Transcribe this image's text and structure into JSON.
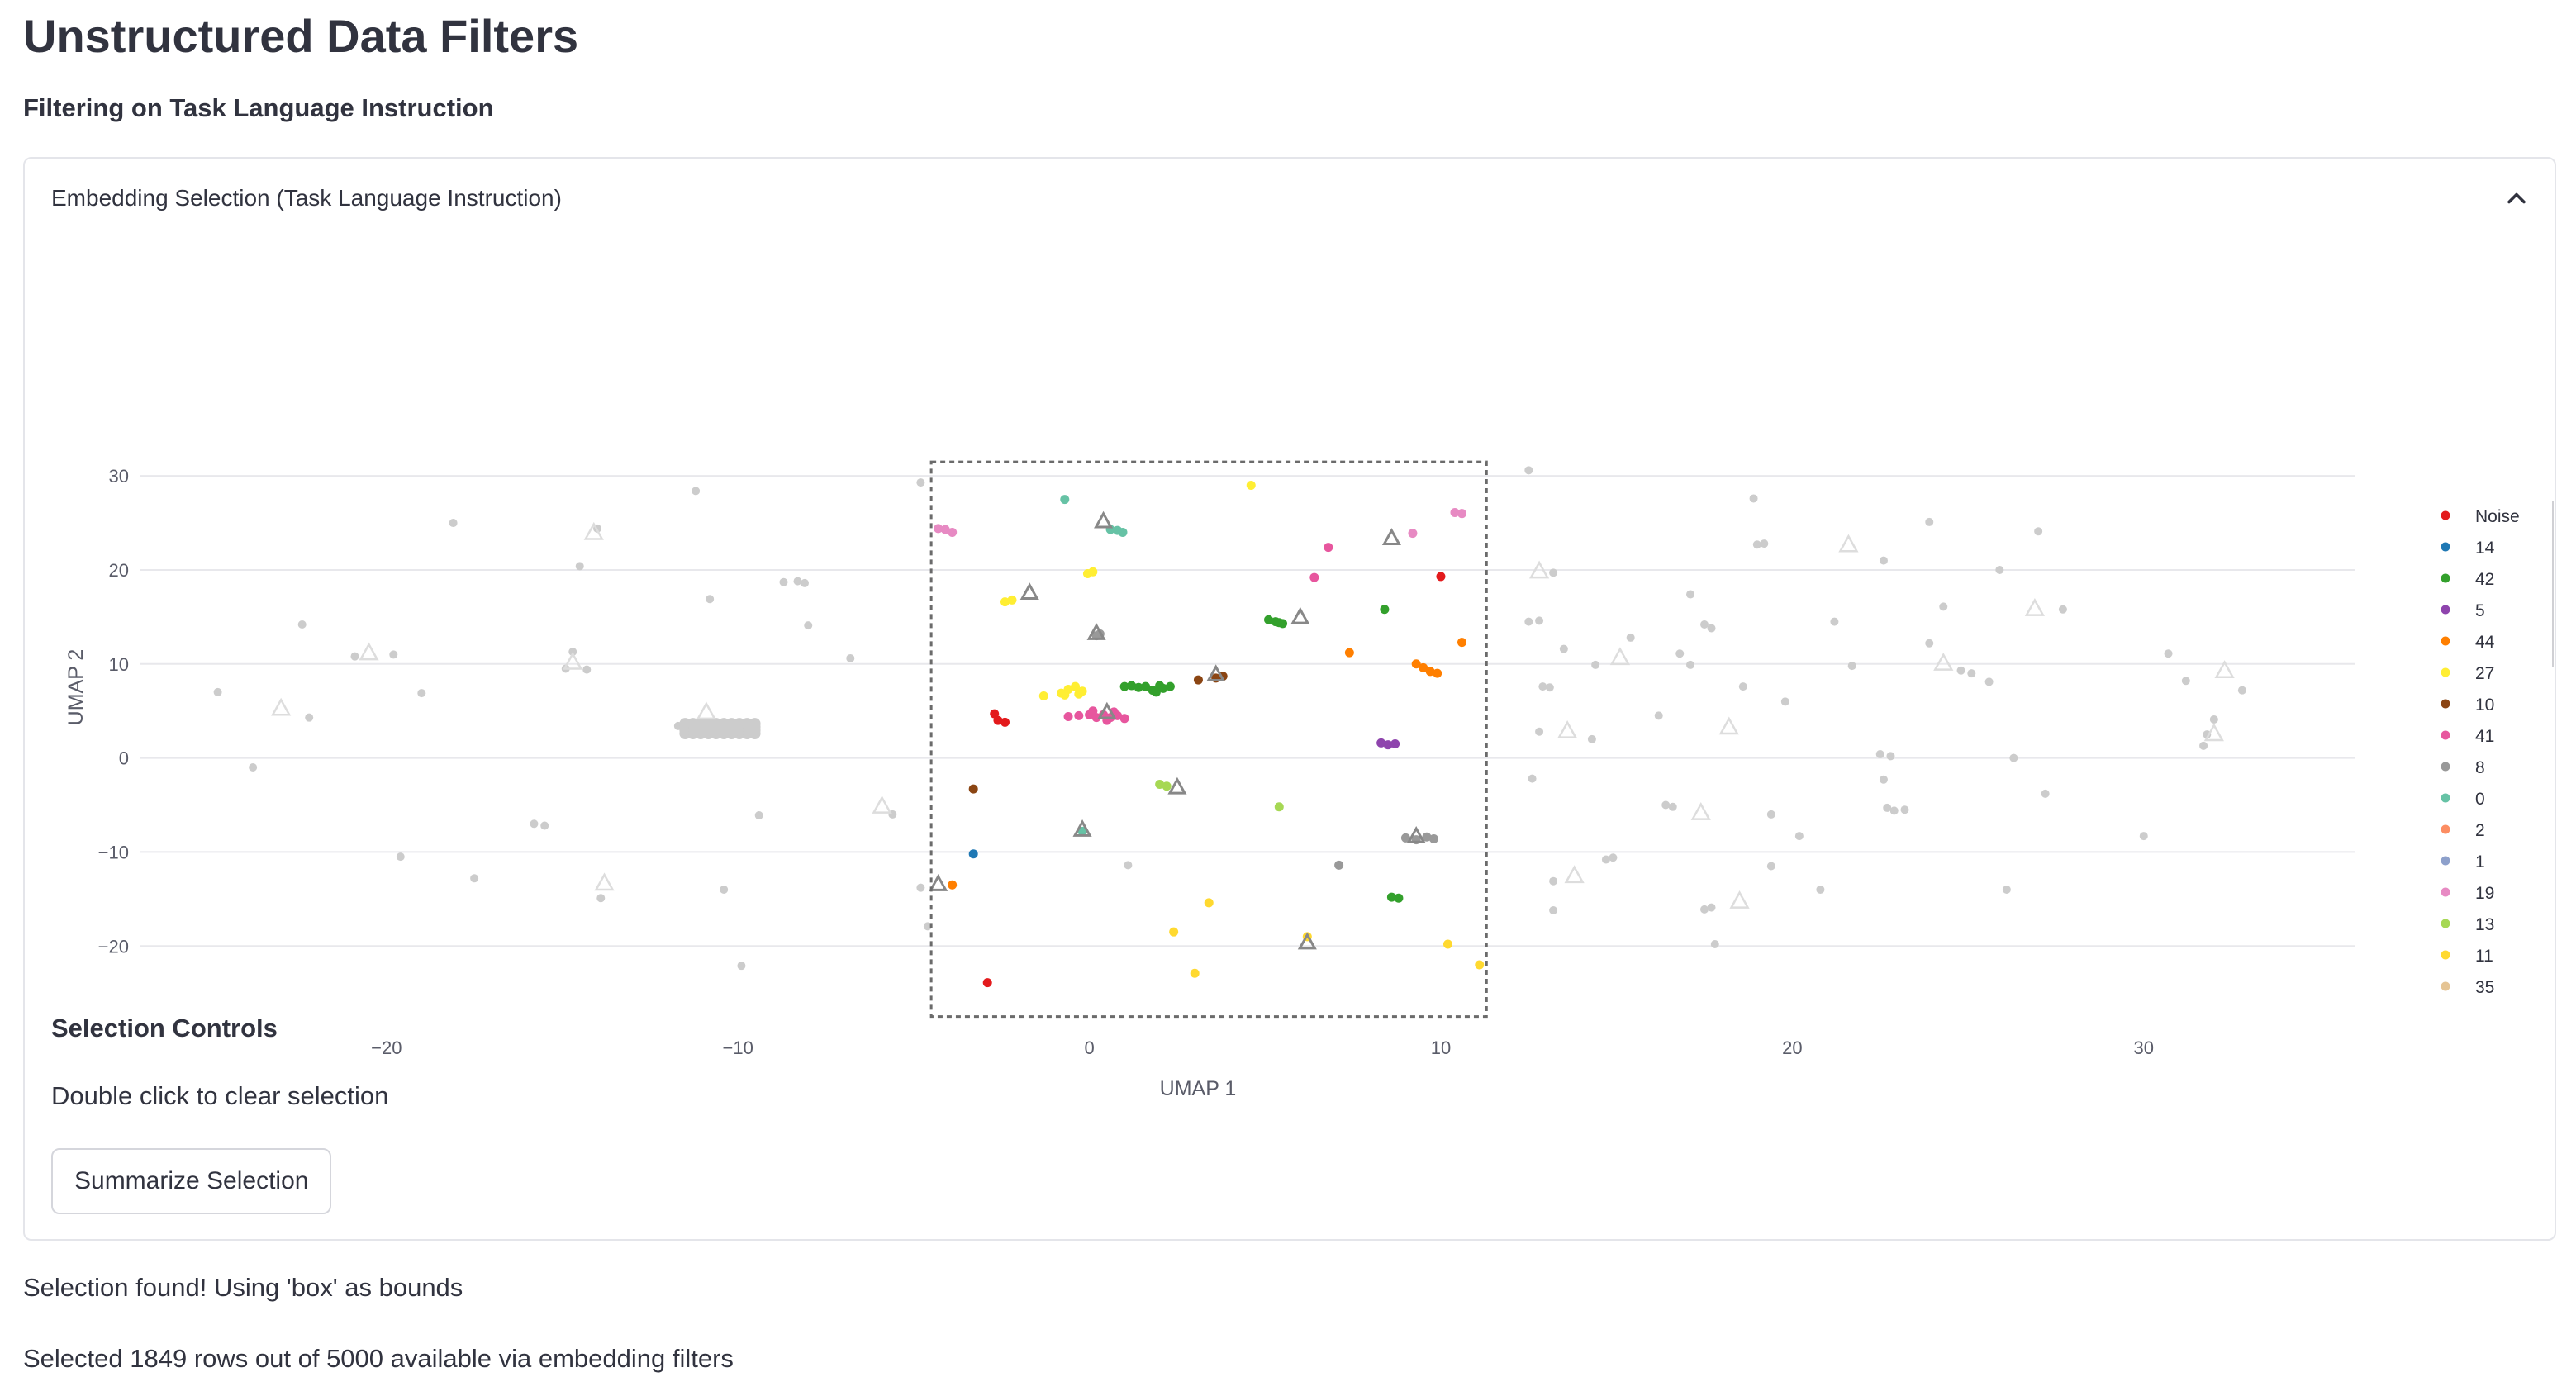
{
  "page": {
    "title": "Unstructured Data Filters",
    "subtitle": "Filtering on Task Language Instruction"
  },
  "expander": {
    "title": "Embedding Selection (Task Language Instruction)",
    "icon": "chevron-up-icon"
  },
  "controls": {
    "title": "Selection Controls",
    "hint": "Double click to clear selection",
    "button_label": "Summarize Selection"
  },
  "status": {
    "found": "Selection found! Using 'box' as bounds",
    "selected": "Selected 1849 rows out of 5000 available via embedding filters"
  },
  "colors": {
    "unselected": "#cccccc",
    "selection_box": "#6b6b6b",
    "text": "#31333f",
    "grid": "#e8e8ec"
  },
  "chart_data": {
    "type": "scatter",
    "xlabel": "UMAP 1",
    "ylabel": "UMAP 2",
    "xlim": [
      -27,
      36
    ],
    "ylim": [
      -28.5,
      33
    ],
    "xticks": [
      -20,
      -10,
      0,
      10,
      20,
      30
    ],
    "yticks": [
      -20,
      -10,
      0,
      10,
      20,
      30
    ],
    "grid": "horizontal",
    "legend_position": "right",
    "selection_box": {
      "x": [
        -4.5,
        11.3
      ],
      "y": [
        -27.5,
        31.5
      ]
    },
    "legend": [
      {
        "label": "Noise",
        "color": "#e31a1c"
      },
      {
        "label": "14",
        "color": "#1f78b4"
      },
      {
        "label": "42",
        "color": "#33a02c"
      },
      {
        "label": "5",
        "color": "#8e44ad"
      },
      {
        "label": "44",
        "color": "#ff7f00"
      },
      {
        "label": "27",
        "color": "#ffee33"
      },
      {
        "label": "10",
        "color": "#8b4513"
      },
      {
        "label": "41",
        "color": "#e7569e"
      },
      {
        "label": "8",
        "color": "#999999"
      },
      {
        "label": "0",
        "color": "#66c2a5"
      },
      {
        "label": "2",
        "color": "#fc8d62"
      },
      {
        "label": "1",
        "color": "#8da0cb"
      },
      {
        "label": "19",
        "color": "#e78ac3"
      },
      {
        "label": "13",
        "color": "#a6d854"
      },
      {
        "label": "11",
        "color": "#ffd92f"
      },
      {
        "label": "35",
        "color": "#e5c494"
      }
    ],
    "selected_points": [
      {
        "x": -4.1,
        "y": 24.3,
        "c": "#e78ac3"
      },
      {
        "x": -3.9,
        "y": 24.0,
        "c": "#e78ac3"
      },
      {
        "x": -4.3,
        "y": 24.4,
        "c": "#e78ac3"
      },
      {
        "x": -0.7,
        "y": 27.5,
        "c": "#66c2a5"
      },
      {
        "x": 0.8,
        "y": 24.2,
        "c": "#66c2a5"
      },
      {
        "x": 0.95,
        "y": 24.0,
        "c": "#66c2a5"
      },
      {
        "x": 0.6,
        "y": 24.3,
        "c": "#66c2a5"
      },
      {
        "x": 4.6,
        "y": 29.0,
        "c": "#ffee33"
      },
      {
        "x": -0.05,
        "y": 19.6,
        "c": "#ffee33"
      },
      {
        "x": 0.1,
        "y": 19.8,
        "c": "#ffee33"
      },
      {
        "x": -2.4,
        "y": 16.6,
        "c": "#ffee33"
      },
      {
        "x": -2.2,
        "y": 16.8,
        "c": "#ffee33"
      },
      {
        "x": 0.2,
        "y": 13.0,
        "c": "#999999"
      },
      {
        "x": 0.3,
        "y": 13.2,
        "c": "#999999"
      },
      {
        "x": 6.8,
        "y": 22.4,
        "c": "#e7569e"
      },
      {
        "x": 6.4,
        "y": 19.2,
        "c": "#e7569e"
      },
      {
        "x": 9.2,
        "y": 23.9,
        "c": "#e78ac3"
      },
      {
        "x": 10.4,
        "y": 26.1,
        "c": "#e78ac3"
      },
      {
        "x": 10.6,
        "y": 26.0,
        "c": "#e78ac3"
      },
      {
        "x": 10.0,
        "y": 19.3,
        "c": "#e31a1c"
      },
      {
        "x": 8.4,
        "y": 15.8,
        "c": "#33a02c"
      },
      {
        "x": 5.1,
        "y": 14.7,
        "c": "#33a02c"
      },
      {
        "x": 5.3,
        "y": 14.5,
        "c": "#33a02c"
      },
      {
        "x": 5.5,
        "y": 14.3,
        "c": "#33a02c"
      },
      {
        "x": 5.4,
        "y": 14.4,
        "c": "#33a02c"
      },
      {
        "x": 10.6,
        "y": 12.3,
        "c": "#ff7f00"
      },
      {
        "x": 7.4,
        "y": 11.2,
        "c": "#ff7f00"
      },
      {
        "x": 9.3,
        "y": 10.0,
        "c": "#ff7f00"
      },
      {
        "x": 9.5,
        "y": 9.6,
        "c": "#ff7f00"
      },
      {
        "x": 9.7,
        "y": 9.2,
        "c": "#ff7f00"
      },
      {
        "x": 9.9,
        "y": 9.0,
        "c": "#ff7f00"
      },
      {
        "x": 3.1,
        "y": 8.3,
        "c": "#8b4513"
      },
      {
        "x": 3.6,
        "y": 8.5,
        "c": "#8b4513"
      },
      {
        "x": 3.8,
        "y": 8.7,
        "c": "#8b4513"
      },
      {
        "x": 1.0,
        "y": 7.6,
        "c": "#33a02c"
      },
      {
        "x": 1.2,
        "y": 7.7,
        "c": "#33a02c"
      },
      {
        "x": 1.4,
        "y": 7.5,
        "c": "#33a02c"
      },
      {
        "x": 1.6,
        "y": 7.6,
        "c": "#33a02c"
      },
      {
        "x": 1.8,
        "y": 7.2,
        "c": "#33a02c"
      },
      {
        "x": 1.9,
        "y": 7.0,
        "c": "#33a02c"
      },
      {
        "x": 2.1,
        "y": 7.4,
        "c": "#33a02c"
      },
      {
        "x": 2.3,
        "y": 7.6,
        "c": "#33a02c"
      },
      {
        "x": 2.0,
        "y": 7.7,
        "c": "#33a02c"
      },
      {
        "x": -1.3,
        "y": 6.6,
        "c": "#ffee33"
      },
      {
        "x": -0.8,
        "y": 6.9,
        "c": "#ffee33"
      },
      {
        "x": -0.6,
        "y": 7.3,
        "c": "#ffee33"
      },
      {
        "x": -0.4,
        "y": 7.6,
        "c": "#ffee33"
      },
      {
        "x": -0.2,
        "y": 7.1,
        "c": "#ffee33"
      },
      {
        "x": -0.7,
        "y": 6.7,
        "c": "#ffee33"
      },
      {
        "x": -0.3,
        "y": 6.8,
        "c": "#ffee33"
      },
      {
        "x": -2.7,
        "y": 4.7,
        "c": "#e31a1c"
      },
      {
        "x": -2.6,
        "y": 4.0,
        "c": "#e31a1c"
      },
      {
        "x": -2.4,
        "y": 3.8,
        "c": "#e31a1c"
      },
      {
        "x": -0.6,
        "y": 4.4,
        "c": "#e7569e"
      },
      {
        "x": -0.3,
        "y": 4.5,
        "c": "#e7569e"
      },
      {
        "x": 0.0,
        "y": 4.6,
        "c": "#e7569e"
      },
      {
        "x": 0.2,
        "y": 4.3,
        "c": "#e7569e"
      },
      {
        "x": 0.4,
        "y": 4.6,
        "c": "#e7569e"
      },
      {
        "x": 0.6,
        "y": 4.3,
        "c": "#e7569e"
      },
      {
        "x": 0.8,
        "y": 4.5,
        "c": "#e7569e"
      },
      {
        "x": 1.0,
        "y": 4.2,
        "c": "#e7569e"
      },
      {
        "x": 0.5,
        "y": 4.0,
        "c": "#e7569e"
      },
      {
        "x": 0.1,
        "y": 5.0,
        "c": "#e7569e"
      },
      {
        "x": 0.7,
        "y": 4.9,
        "c": "#e7569e"
      },
      {
        "x": 8.3,
        "y": 1.6,
        "c": "#8e44ad"
      },
      {
        "x": 8.5,
        "y": 1.4,
        "c": "#8e44ad"
      },
      {
        "x": 8.7,
        "y": 1.5,
        "c": "#8e44ad"
      },
      {
        "x": -3.3,
        "y": -3.3,
        "c": "#8b4513"
      },
      {
        "x": 2.0,
        "y": -2.8,
        "c": "#a6d854"
      },
      {
        "x": 2.2,
        "y": -3.0,
        "c": "#a6d854"
      },
      {
        "x": 5.4,
        "y": -5.2,
        "c": "#a6d854"
      },
      {
        "x": -3.3,
        "y": -10.2,
        "c": "#1f78b4"
      },
      {
        "x": -0.2,
        "y": -7.8,
        "c": "#66c2a5"
      },
      {
        "x": -3.9,
        "y": -13.5,
        "c": "#ff7f00"
      },
      {
        "x": 7.1,
        "y": -11.4,
        "c": "#999999"
      },
      {
        "x": 8.6,
        "y": -14.8,
        "c": "#33a02c"
      },
      {
        "x": 8.8,
        "y": -14.9,
        "c": "#33a02c"
      },
      {
        "x": 9.0,
        "y": -8.5,
        "c": "#999999"
      },
      {
        "x": 9.3,
        "y": -8.7,
        "c": "#999999"
      },
      {
        "x": 9.6,
        "y": -8.4,
        "c": "#999999"
      },
      {
        "x": 9.8,
        "y": -8.6,
        "c": "#999999"
      },
      {
        "x": 3.4,
        "y": -15.4,
        "c": "#ffd92f"
      },
      {
        "x": 2.4,
        "y": -18.5,
        "c": "#ffd92f"
      },
      {
        "x": 6.2,
        "y": -19.0,
        "c": "#ffd92f"
      },
      {
        "x": 10.2,
        "y": -19.8,
        "c": "#ffd92f"
      },
      {
        "x": 3.0,
        "y": -22.9,
        "c": "#ffd92f"
      },
      {
        "x": 11.1,
        "y": -22.0,
        "c": "#ffd92f"
      },
      {
        "x": -2.9,
        "y": -23.9,
        "c": "#e31a1c"
      }
    ],
    "selected_triangles": [
      {
        "x": 0.4,
        "y": 25.2
      },
      {
        "x": 8.6,
        "y": 23.4
      },
      {
        "x": -1.7,
        "y": 17.6
      },
      {
        "x": 6.0,
        "y": 15.0
      },
      {
        "x": 0.2,
        "y": 13.3
      },
      {
        "x": 3.6,
        "y": 8.9
      },
      {
        "x": 0.5,
        "y": 4.9
      },
      {
        "x": 2.5,
        "y": -3.1
      },
      {
        "x": -4.3,
        "y": -13.4
      },
      {
        "x": 9.3,
        "y": -8.3
      },
      {
        "x": 6.2,
        "y": -19.6
      },
      {
        "x": -0.2,
        "y": -7.6
      }
    ],
    "unselected_points": [
      {
        "x": -24.8,
        "y": 7.0
      },
      {
        "x": -23.8,
        "y": -1.0
      },
      {
        "x": -22.4,
        "y": 14.2
      },
      {
        "x": -22.2,
        "y": 4.3
      },
      {
        "x": -20.9,
        "y": 10.8
      },
      {
        "x": -19.8,
        "y": 11.0
      },
      {
        "x": -19.6,
        "y": -10.5
      },
      {
        "x": -19.0,
        "y": 6.9
      },
      {
        "x": -18.1,
        "y": 25.0
      },
      {
        "x": -17.5,
        "y": -12.8
      },
      {
        "x": -15.8,
        "y": -7.0
      },
      {
        "x": -15.5,
        "y": -7.2
      },
      {
        "x": -14.7,
        "y": 11.3
      },
      {
        "x": -14.9,
        "y": 9.5
      },
      {
        "x": -14.5,
        "y": 20.4
      },
      {
        "x": -14.3,
        "y": 9.4
      },
      {
        "x": -14.0,
        "y": 24.4
      },
      {
        "x": -13.9,
        "y": -14.9
      },
      {
        "x": -11.2,
        "y": 28.4
      },
      {
        "x": -10.8,
        "y": 16.9
      },
      {
        "x": -10.4,
        "y": -14.0
      },
      {
        "x": -9.9,
        "y": -22.1
      },
      {
        "x": -9.4,
        "y": -6.1
      },
      {
        "x": -8.7,
        "y": 18.7
      },
      {
        "x": -8.3,
        "y": 18.8
      },
      {
        "x": -8.1,
        "y": 18.6
      },
      {
        "x": -8.0,
        "y": 14.1
      },
      {
        "x": -6.8,
        "y": 10.6
      },
      {
        "x": -5.6,
        "y": -6.0
      },
      {
        "x": -4.8,
        "y": -13.8
      },
      {
        "x": -4.6,
        "y": -17.9
      },
      {
        "x": -4.8,
        "y": 29.3
      },
      {
        "x": 1.1,
        "y": -11.4
      },
      {
        "x": 12.5,
        "y": 30.6
      },
      {
        "x": 12.5,
        "y": 14.5
      },
      {
        "x": 12.8,
        "y": 14.6
      },
      {
        "x": 13.2,
        "y": 19.7
      },
      {
        "x": 12.6,
        "y": -2.2
      },
      {
        "x": 12.9,
        "y": 7.6
      },
      {
        "x": 13.1,
        "y": 7.5
      },
      {
        "x": 12.8,
        "y": 2.8
      },
      {
        "x": 13.2,
        "y": -13.1
      },
      {
        "x": 13.2,
        "y": -16.2
      },
      {
        "x": 13.5,
        "y": 11.6
      },
      {
        "x": 14.4,
        "y": 9.9
      },
      {
        "x": 14.3,
        "y": 2.0
      },
      {
        "x": 14.7,
        "y": -10.8
      },
      {
        "x": 14.9,
        "y": -10.6
      },
      {
        "x": 15.4,
        "y": 12.8
      },
      {
        "x": 16.2,
        "y": 4.5
      },
      {
        "x": 16.4,
        "y": -5.0
      },
      {
        "x": 16.6,
        "y": -5.2
      },
      {
        "x": 16.8,
        "y": 11.1
      },
      {
        "x": 17.1,
        "y": 17.4
      },
      {
        "x": 17.1,
        "y": 9.9
      },
      {
        "x": 17.5,
        "y": 14.2
      },
      {
        "x": 17.7,
        "y": 13.8
      },
      {
        "x": 17.5,
        "y": -16.1
      },
      {
        "x": 17.7,
        "y": -15.9
      },
      {
        "x": 17.8,
        "y": -19.8
      },
      {
        "x": 18.6,
        "y": 7.6
      },
      {
        "x": 18.9,
        "y": 27.6
      },
      {
        "x": 19.0,
        "y": 22.7
      },
      {
        "x": 19.2,
        "y": 22.8
      },
      {
        "x": 19.4,
        "y": -6.0
      },
      {
        "x": 19.4,
        "y": -11.5
      },
      {
        "x": 19.8,
        "y": 6.0
      },
      {
        "x": 20.2,
        "y": -8.3
      },
      {
        "x": 20.8,
        "y": -14.0
      },
      {
        "x": 21.2,
        "y": 14.5
      },
      {
        "x": 21.7,
        "y": 9.8
      },
      {
        "x": 22.6,
        "y": 21.0
      },
      {
        "x": 22.5,
        "y": 0.4
      },
      {
        "x": 22.8,
        "y": 0.2
      },
      {
        "x": 22.6,
        "y": -2.3
      },
      {
        "x": 22.7,
        "y": -5.3
      },
      {
        "x": 22.9,
        "y": -5.6
      },
      {
        "x": 23.2,
        "y": -5.5
      },
      {
        "x": 23.9,
        "y": 25.1
      },
      {
        "x": 23.9,
        "y": 12.2
      },
      {
        "x": 24.3,
        "y": 16.1
      },
      {
        "x": 24.8,
        "y": 9.3
      },
      {
        "x": 25.1,
        "y": 9.0
      },
      {
        "x": 25.6,
        "y": 8.1
      },
      {
        "x": 25.9,
        "y": 20.0
      },
      {
        "x": 26.1,
        "y": -14.0
      },
      {
        "x": 26.3,
        "y": 0.0
      },
      {
        "x": 27.0,
        "y": 24.1
      },
      {
        "x": 27.2,
        "y": -3.8
      },
      {
        "x": 27.7,
        "y": 15.8
      },
      {
        "x": 30.0,
        "y": -8.3
      },
      {
        "x": 30.7,
        "y": 11.1
      },
      {
        "x": 31.2,
        "y": 8.2
      },
      {
        "x": 31.7,
        "y": 1.3
      },
      {
        "x": 31.8,
        "y": 2.5
      },
      {
        "x": 32.0,
        "y": 4.1
      },
      {
        "x": 32.8,
        "y": 7.2
      },
      {
        "x": -11.4,
        "y": 3.2
      },
      {
        "x": -10.8,
        "y": 3.1
      },
      {
        "x": -10.2,
        "y": 3.5
      },
      {
        "x": -9.8,
        "y": 3.2
      },
      {
        "x": -11.7,
        "y": 3.4
      },
      {
        "x": -10.5,
        "y": 2.9
      }
    ],
    "unselected_triangles": [
      {
        "x": -20.5,
        "y": 11.2
      },
      {
        "x": -23.0,
        "y": 5.3
      },
      {
        "x": -14.1,
        "y": 24.0
      },
      {
        "x": -13.8,
        "y": -13.3
      },
      {
        "x": -10.9,
        "y": 4.9
      },
      {
        "x": -5.9,
        "y": -5.1
      },
      {
        "x": -14.7,
        "y": 10.2
      },
      {
        "x": 12.8,
        "y": 19.9
      },
      {
        "x": 13.6,
        "y": 2.9
      },
      {
        "x": 15.1,
        "y": 10.7
      },
      {
        "x": 13.8,
        "y": -12.5
      },
      {
        "x": 18.2,
        "y": 3.3
      },
      {
        "x": 17.4,
        "y": -5.8
      },
      {
        "x": 18.5,
        "y": -15.2
      },
      {
        "x": 21.6,
        "y": 22.7
      },
      {
        "x": 24.3,
        "y": 10.1
      },
      {
        "x": 26.9,
        "y": 15.9
      },
      {
        "x": 32.0,
        "y": 2.6
      },
      {
        "x": 32.3,
        "y": 9.3
      }
    ]
  }
}
